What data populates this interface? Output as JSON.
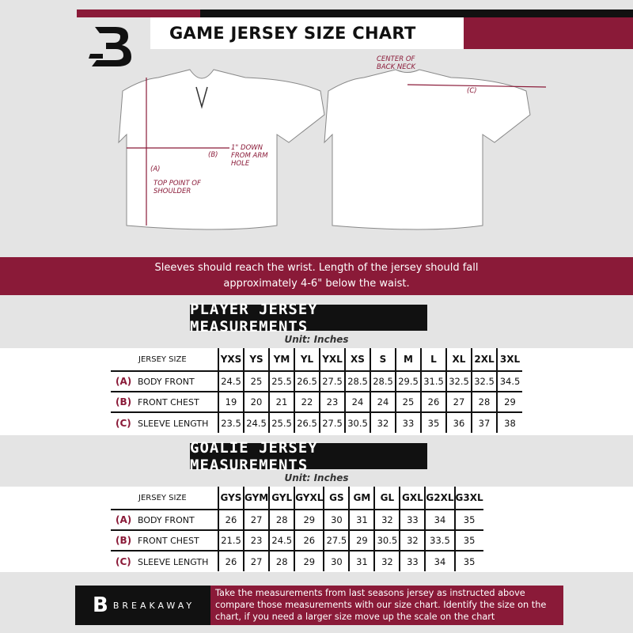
{
  "header": {
    "title": "GAME JERSEY SIZE CHART"
  },
  "diagram": {
    "label_a": "(A)",
    "label_a_text": "TOP POINT OF SHOULDER",
    "label_b": "(B)",
    "label_b_text": "1\" DOWN FROM ARM HOLE",
    "label_c": "(C)",
    "label_c_text": "CENTER OF BACK NECK"
  },
  "banner": {
    "line1": "Sleeves should reach the wrist. Length of the jersey should fall",
    "line2": "approximately 4-6\" below the waist."
  },
  "player": {
    "heading": "PLAYER JERSEY MEASUREMENTS",
    "unit": "Unit: Inches",
    "size_header": "JERSEY SIZE",
    "sizes": [
      "YXS",
      "YS",
      "YM",
      "YL",
      "YXL",
      "XS",
      "S",
      "M",
      "L",
      "XL",
      "2XL",
      "3XL"
    ],
    "rows": [
      {
        "key": "(A)",
        "label": "BODY FRONT",
        "values": [
          "24.5",
          "25",
          "25.5",
          "26.5",
          "27.5",
          "28.5",
          "28.5",
          "29.5",
          "31.5",
          "32.5",
          "32.5",
          "34.5"
        ]
      },
      {
        "key": "(B)",
        "label": "FRONT CHEST",
        "values": [
          "19",
          "20",
          "21",
          "22",
          "23",
          "24",
          "24",
          "25",
          "26",
          "27",
          "28",
          "29"
        ]
      },
      {
        "key": "(C)",
        "label": "SLEEVE LENGTH",
        "values": [
          "23.5",
          "24.5",
          "25.5",
          "26.5",
          "27.5",
          "30.5",
          "32",
          "33",
          "35",
          "36",
          "37",
          "38"
        ]
      }
    ]
  },
  "goalie": {
    "heading": "GOALIE JERSEY MEASUREMENTS",
    "unit": "Unit: Inches",
    "size_header": "JERSEY SIZE",
    "sizes": [
      "GYS",
      "GYM",
      "GYL",
      "GYXL",
      "GS",
      "GM",
      "GL",
      "GXL",
      "G2XL",
      "G3XL"
    ],
    "rows": [
      {
        "key": "(A)",
        "label": "BODY FRONT",
        "values": [
          "26",
          "27",
          "28",
          "29",
          "30",
          "31",
          "32",
          "33",
          "34",
          "35"
        ]
      },
      {
        "key": "(B)",
        "label": "FRONT CHEST",
        "values": [
          "21.5",
          "23",
          "24.5",
          "26",
          "27.5",
          "29",
          "30.5",
          "32",
          "33.5",
          "35"
        ]
      },
      {
        "key": "(C)",
        "label": "SLEEVE LENGTH",
        "values": [
          "26",
          "27",
          "28",
          "29",
          "30",
          "31",
          "32",
          "33",
          "34",
          "35"
        ]
      }
    ]
  },
  "footer": {
    "brand": "BREAKAWAY",
    "logo_letter": "B",
    "note": "Take the measurements from last seasons jersey as instructed above compare those measurements  with our size chart. Identify the size on the chart, if you need a larger size move up the scale on the chart"
  },
  "colors": {
    "accent": "#8a1a38",
    "dark": "#111111",
    "background": "#e4e4e4"
  }
}
